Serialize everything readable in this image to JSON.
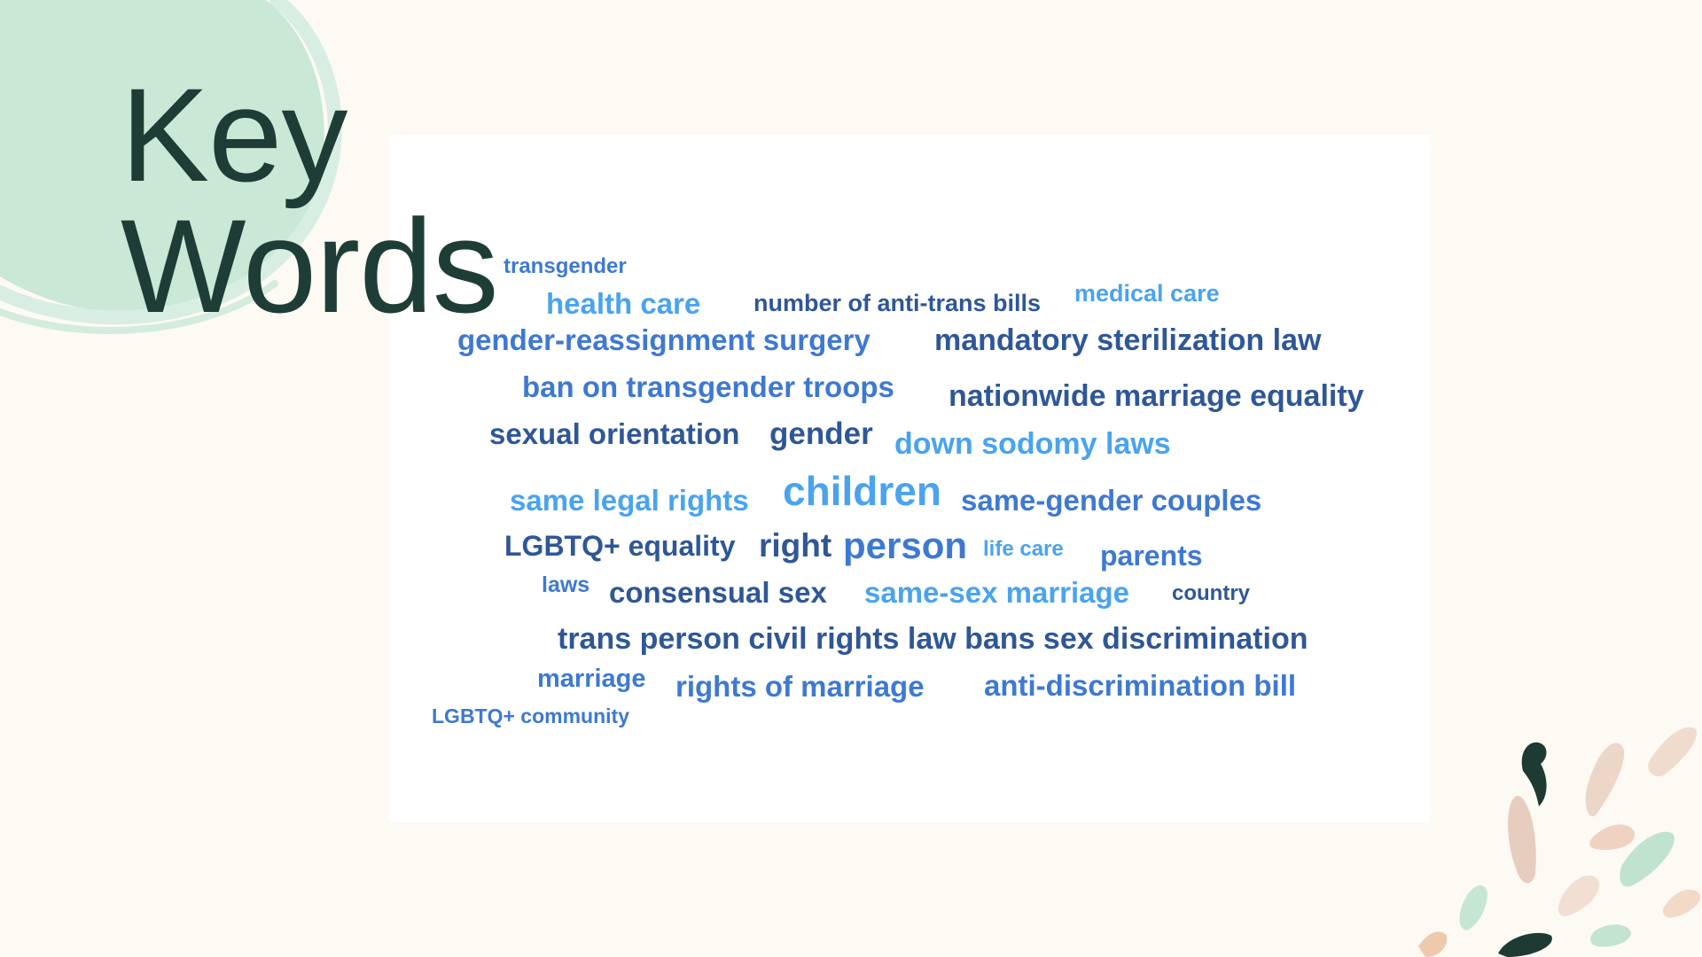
{
  "slide": {
    "title_line1": "Key",
    "title_line2": "Words"
  },
  "colors": {
    "background": "#fdf9f3",
    "title": "#1e3d36",
    "accent_mint": "#c9e8d6",
    "word_dark": "#2f5797",
    "word_mid": "#3e79d1",
    "word_light": "#4aa3ee"
  },
  "word_cloud": {
    "words": [
      {
        "text": "transgender",
        "tone": "mid"
      },
      {
        "text": "health care",
        "tone": "light"
      },
      {
        "text": "number of anti-trans bills",
        "tone": "dark"
      },
      {
        "text": "medical care",
        "tone": "light"
      },
      {
        "text": "gender-reassignment surgery",
        "tone": "mid"
      },
      {
        "text": "mandatory sterilization law",
        "tone": "dark"
      },
      {
        "text": "ban on transgender troops",
        "tone": "mid"
      },
      {
        "text": "nationwide marriage equality",
        "tone": "dark"
      },
      {
        "text": "sexual orientation",
        "tone": "dark"
      },
      {
        "text": "gender",
        "tone": "dark"
      },
      {
        "text": "down sodomy laws",
        "tone": "light"
      },
      {
        "text": "same legal rights",
        "tone": "light"
      },
      {
        "text": "children",
        "tone": "light"
      },
      {
        "text": "same-gender couples",
        "tone": "mid"
      },
      {
        "text": "LGBTQ+ equality",
        "tone": "dark"
      },
      {
        "text": "right",
        "tone": "dark"
      },
      {
        "text": "person",
        "tone": "mid"
      },
      {
        "text": "life care",
        "tone": "light"
      },
      {
        "text": "parents",
        "tone": "mid"
      },
      {
        "text": "laws",
        "tone": "mid"
      },
      {
        "text": "consensual sex",
        "tone": "dark"
      },
      {
        "text": "same-sex marriage",
        "tone": "light"
      },
      {
        "text": "country",
        "tone": "dark"
      },
      {
        "text": "trans person civil rights law bans sex discrimination",
        "tone": "dark"
      },
      {
        "text": "marriage",
        "tone": "mid"
      },
      {
        "text": "rights of marriage",
        "tone": "mid"
      },
      {
        "text": "anti-discrimination bill",
        "tone": "mid"
      },
      {
        "text": "LGBTQ+ community",
        "tone": "mid"
      }
    ]
  }
}
